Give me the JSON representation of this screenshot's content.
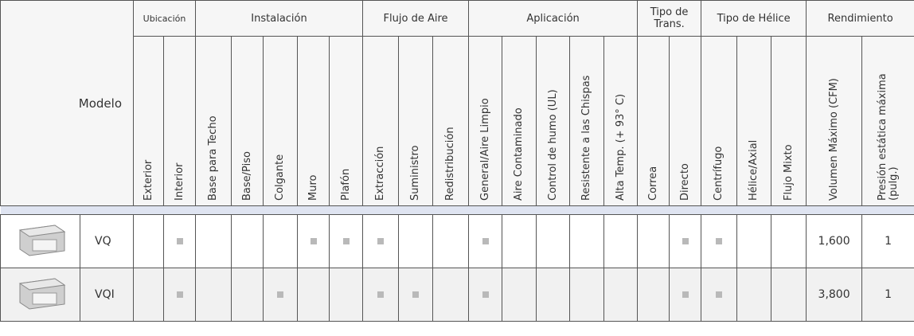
{
  "header": {
    "model_label": "Modelo",
    "groups": [
      {
        "label": "Ubicación",
        "columns": [
          "Exterior",
          "Interior"
        ]
      },
      {
        "label": "Instalación",
        "columns": [
          "Base para Techo",
          "Base/Piso",
          "Colgante",
          "Muro",
          "Plafón"
        ]
      },
      {
        "label": "Flujo de Aire",
        "columns": [
          "Extracción",
          "Suministro",
          "Redistribución"
        ]
      },
      {
        "label": "Aplicación",
        "columns": [
          "General/Aire Limpio",
          "Aire Contaminado",
          "Control de humo (UL)",
          "Resistente a las Chispas",
          "Alta Temp. (+ 93° C)"
        ]
      },
      {
        "label": "Tipo de Trans.",
        "columns": [
          "Correa",
          "Directo"
        ]
      },
      {
        "label": "Tipo de Hélice",
        "columns": [
          "Centrífugo",
          "Hélice/Axial",
          "Flujo Mixto"
        ]
      }
    ],
    "performance": {
      "label": "Rendimiento",
      "columns": [
        "Volumen Máximo (CFM)",
        "Presión estática máxima (pulg.)"
      ]
    }
  },
  "rows": [
    {
      "model": "VQ",
      "features": [
        false,
        true,
        false,
        false,
        false,
        true,
        true,
        true,
        false,
        false,
        true,
        false,
        false,
        false,
        false,
        false,
        true,
        true,
        false,
        false
      ],
      "performance": [
        "1,600",
        "1"
      ]
    },
    {
      "model": "VQI",
      "features": [
        false,
        true,
        false,
        false,
        true,
        false,
        false,
        true,
        true,
        false,
        true,
        false,
        false,
        false,
        false,
        false,
        true,
        true,
        false,
        false
      ],
      "performance": [
        "3,800",
        "1"
      ]
    }
  ]
}
